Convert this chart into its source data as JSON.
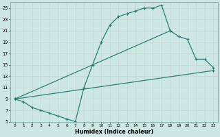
{
  "xlabel": "Humidex (Indice chaleur)",
  "bg_color": "#cde8e4",
  "line_color": "#2d7d72",
  "grid_color": "#c0dbd7",
  "ylim": [
    5,
    26
  ],
  "xlim": [
    -0.5,
    23.5
  ],
  "yticks": [
    5,
    7,
    9,
    11,
    13,
    15,
    17,
    19,
    21,
    23,
    25
  ],
  "xticks": [
    0,
    1,
    2,
    3,
    4,
    5,
    6,
    7,
    8,
    9,
    10,
    11,
    12,
    13,
    14,
    15,
    16,
    17,
    18,
    19,
    20,
    21,
    22,
    23
  ],
  "line1_x": [
    0,
    1,
    2,
    3,
    4,
    5,
    6,
    7,
    8,
    9,
    10,
    11,
    12,
    13,
    14,
    15,
    16,
    17,
    18
  ],
  "line1_y": [
    9,
    8.5,
    7.5,
    7,
    6.5,
    6,
    5.5,
    5,
    11,
    15,
    19,
    22,
    23.5,
    24,
    24.5,
    25,
    25,
    25.5,
    21
  ],
  "line2_x": [
    0,
    18,
    19,
    20,
    21,
    22,
    23
  ],
  "line2_y": [
    9,
    21,
    20,
    19.5,
    16,
    16,
    14.5
  ],
  "line3_x": [
    0,
    23
  ],
  "line3_y": [
    9,
    14
  ]
}
